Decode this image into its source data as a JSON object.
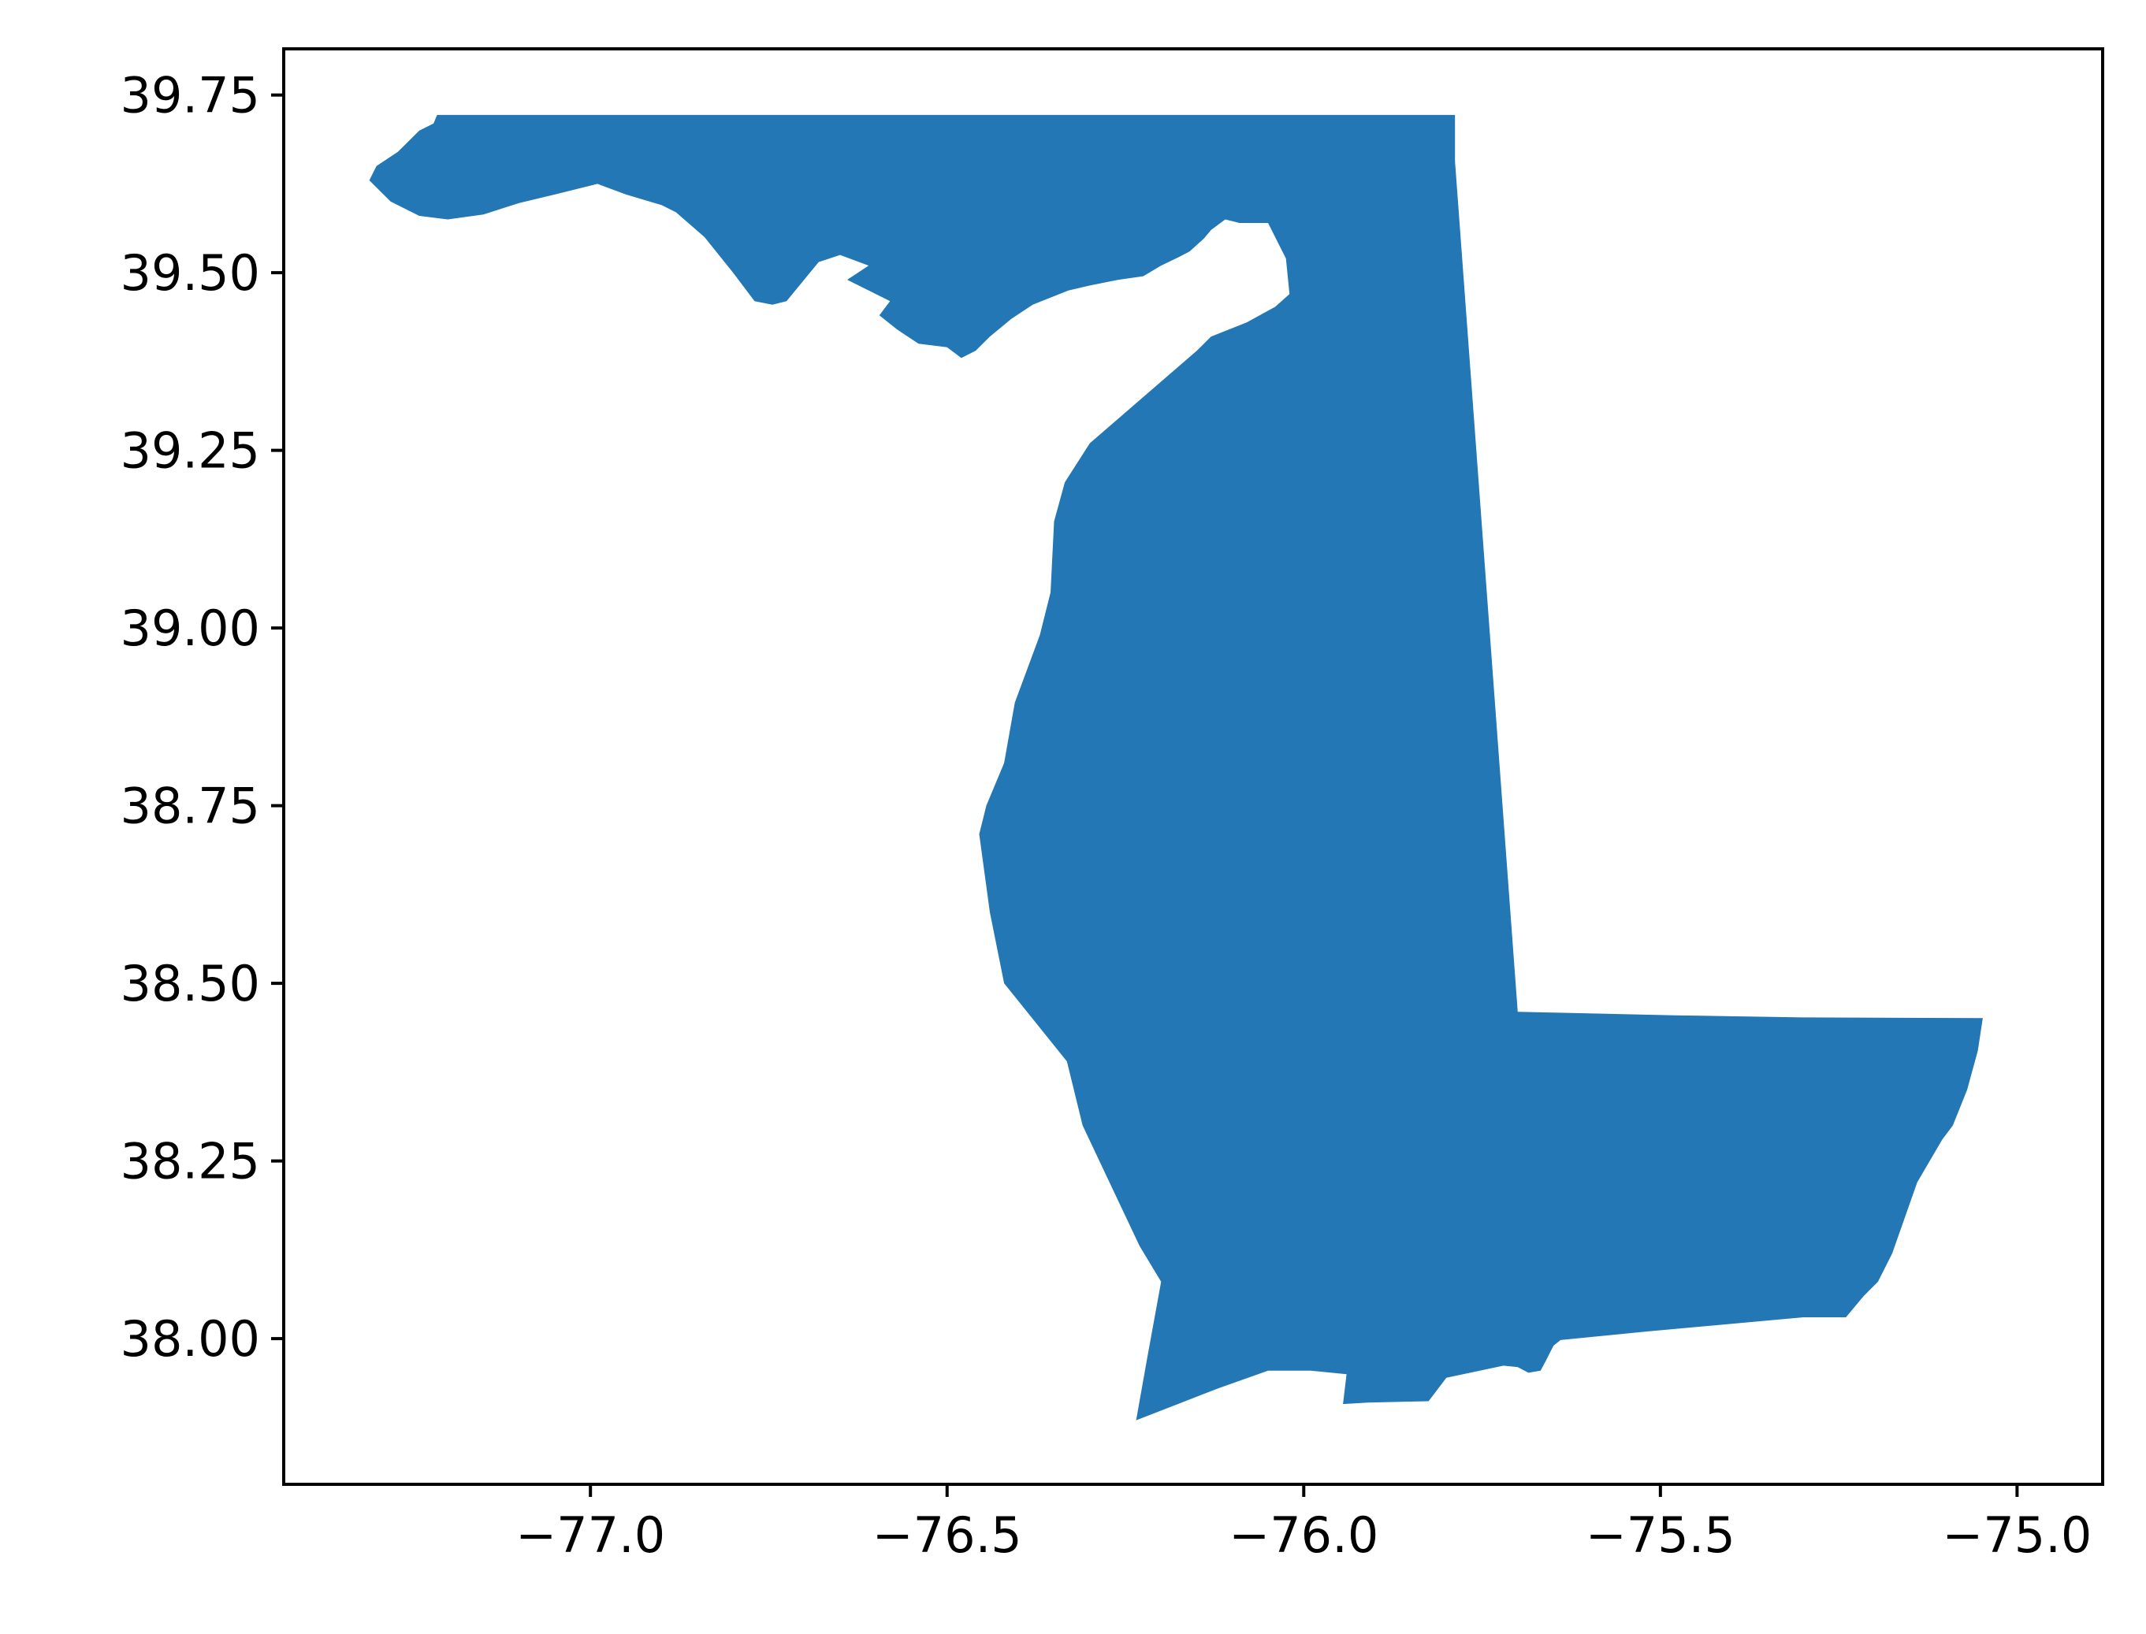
{
  "chart_data": {
    "type": "map",
    "title": "",
    "xlabel": "",
    "ylabel": "",
    "xlim": [
      -77.43,
      -74.88
    ],
    "ylim": [
      37.795,
      39.815
    ],
    "grid": false,
    "fill_color": "#2277b4",
    "x_ticks": [
      {
        "value": -77.0,
        "label": "−77.0"
      },
      {
        "value": -76.5,
        "label": "−76.5"
      },
      {
        "value": -76.0,
        "label": "−76.0"
      },
      {
        "value": -75.5,
        "label": "−75.5"
      },
      {
        "value": -75.0,
        "label": "−75.0"
      }
    ],
    "y_ticks": [
      {
        "value": 39.75,
        "label": "39.75"
      },
      {
        "value": 39.5,
        "label": "39.50"
      },
      {
        "value": 39.25,
        "label": "39.25"
      },
      {
        "value": 39.0,
        "label": "39.00"
      },
      {
        "value": 38.75,
        "label": "38.75"
      },
      {
        "value": 38.5,
        "label": "38.50"
      },
      {
        "value": 38.25,
        "label": "38.25"
      },
      {
        "value": 38.0,
        "label": "38.00"
      }
    ],
    "region_outline": [
      [
        -77.215,
        39.722
      ],
      [
        -75.788,
        39.722
      ],
      [
        -75.788,
        39.657
      ],
      [
        -75.7,
        38.46
      ],
      [
        -75.48,
        38.455
      ],
      [
        -75.3,
        38.452
      ],
      [
        -75.048,
        38.451
      ],
      [
        -75.055,
        38.405
      ],
      [
        -75.07,
        38.35
      ],
      [
        -75.09,
        38.3
      ],
      [
        -75.105,
        38.28
      ],
      [
        -75.14,
        38.22
      ],
      [
        -75.175,
        38.12
      ],
      [
        -75.195,
        38.08
      ],
      [
        -75.215,
        38.06
      ],
      [
        -75.24,
        38.03
      ],
      [
        -75.3,
        38.03
      ],
      [
        -75.52,
        38.01
      ],
      [
        -75.64,
        37.998
      ],
      [
        -75.65,
        37.99
      ],
      [
        -75.66,
        37.97
      ],
      [
        -75.668,
        37.955
      ],
      [
        -75.685,
        37.952
      ],
      [
        -75.7,
        37.96
      ],
      [
        -75.72,
        37.962
      ],
      [
        -75.8,
        37.945
      ],
      [
        -75.825,
        37.912
      ],
      [
        -75.91,
        37.91
      ],
      [
        -75.945,
        37.908
      ],
      [
        -75.94,
        37.95
      ],
      [
        -75.99,
        37.955
      ],
      [
        -76.05,
        37.955
      ],
      [
        -76.12,
        37.93
      ],
      [
        -76.235,
        37.885
      ],
      [
        -76.22,
        37.97
      ],
      [
        -76.2,
        38.08
      ],
      [
        -76.23,
        38.13
      ],
      [
        -76.31,
        38.3
      ],
      [
        -76.332,
        38.39
      ],
      [
        -76.38,
        38.45
      ],
      [
        -76.42,
        38.5
      ],
      [
        -76.44,
        38.6
      ],
      [
        -76.455,
        38.71
      ],
      [
        -76.445,
        38.75
      ],
      [
        -76.42,
        38.81
      ],
      [
        -76.405,
        38.895
      ],
      [
        -76.37,
        38.99
      ],
      [
        -76.355,
        39.05
      ],
      [
        -76.35,
        39.15
      ],
      [
        -76.335,
        39.205
      ],
      [
        -76.3,
        39.26
      ],
      [
        -76.15,
        39.39
      ],
      [
        -76.13,
        39.41
      ],
      [
        -76.08,
        39.43
      ],
      [
        -76.04,
        39.452
      ],
      [
        -76.02,
        39.47
      ],
      [
        -76.025,
        39.52
      ],
      [
        -76.05,
        39.57
      ],
      [
        -76.09,
        39.57
      ],
      [
        -76.11,
        39.575
      ],
      [
        -76.13,
        39.56
      ],
      [
        -76.14,
        39.548
      ],
      [
        -76.16,
        39.53
      ],
      [
        -76.175,
        39.522
      ],
      [
        -76.2,
        39.51
      ],
      [
        -76.225,
        39.495
      ],
      [
        -76.26,
        39.49
      ],
      [
        -76.3,
        39.482
      ],
      [
        -76.33,
        39.475
      ],
      [
        -76.38,
        39.455
      ],
      [
        -76.41,
        39.435
      ],
      [
        -76.44,
        39.41
      ],
      [
        -76.46,
        39.39
      ],
      [
        -76.48,
        39.38
      ],
      [
        -76.5,
        39.395
      ],
      [
        -76.54,
        39.4
      ],
      [
        -76.57,
        39.42
      ],
      [
        -76.595,
        39.44
      ],
      [
        -76.58,
        39.46
      ],
      [
        -76.64,
        39.49
      ],
      [
        -76.61,
        39.51
      ],
      [
        -76.65,
        39.525
      ],
      [
        -76.68,
        39.515
      ],
      [
        -76.725,
        39.46
      ],
      [
        -76.745,
        39.455
      ],
      [
        -76.77,
        39.46
      ],
      [
        -76.8,
        39.5
      ],
      [
        -76.84,
        39.55
      ],
      [
        -76.88,
        39.585
      ],
      [
        -76.9,
        39.595
      ],
      [
        -76.95,
        39.61
      ],
      [
        -76.99,
        39.625
      ],
      [
        -77.05,
        39.61
      ],
      [
        -77.1,
        39.598
      ],
      [
        -77.15,
        39.582
      ],
      [
        -77.2,
        39.575
      ],
      [
        -77.24,
        39.58
      ],
      [
        -77.28,
        39.6
      ],
      [
        -77.31,
        39.63
      ],
      [
        -77.3,
        39.65
      ],
      [
        -77.27,
        39.67
      ],
      [
        -77.24,
        39.7
      ],
      [
        -77.22,
        39.71
      ]
    ]
  }
}
